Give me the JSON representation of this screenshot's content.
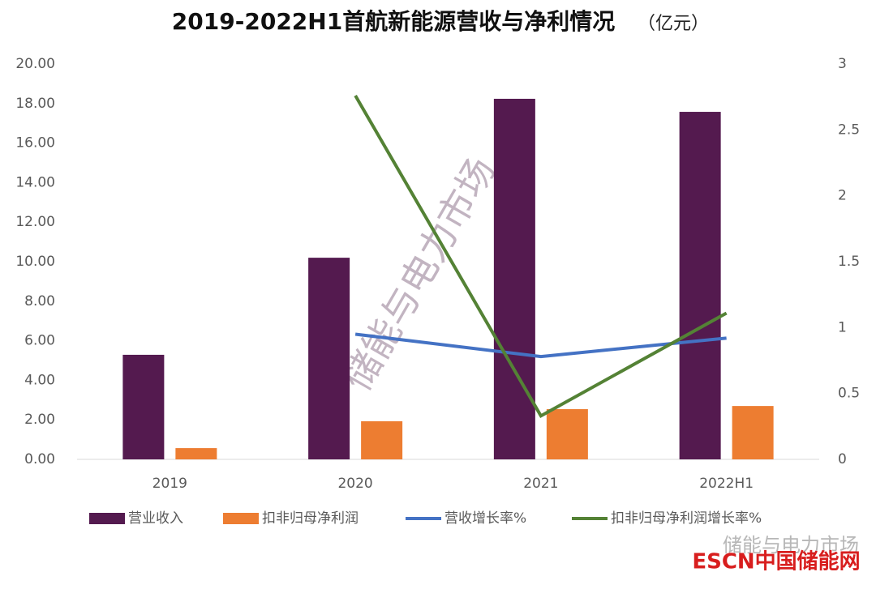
{
  "chart_data": {
    "type": "bar",
    "title": "2019-2022H1首航新能源营收与净利情况",
    "subtitle": "（亿元）",
    "categories": [
      "2019",
      "2020",
      "2021",
      "2022H1"
    ],
    "series": [
      {
        "name": "营业收入",
        "type": "bar",
        "color": "#541a4f",
        "values": [
          5.29,
          10.2,
          18.24,
          17.58
        ]
      },
      {
        "name": "扣非归母净利润",
        "type": "bar",
        "color": "#ed7d31",
        "values": [
          0.57,
          1.93,
          2.54,
          2.7
        ]
      },
      {
        "name": "营收增长率%",
        "type": "line",
        "axis": "y2",
        "color": "#4472c4",
        "values": [
          null,
          0.95,
          0.78,
          0.92
        ]
      },
      {
        "name": "扣非归母净利润增长率%",
        "type": "line",
        "axis": "y2",
        "color": "#548235",
        "values": [
          null,
          2.76,
          0.33,
          1.11
        ]
      }
    ],
    "ylim": [
      0,
      20
    ],
    "yticks": [
      {
        "value": 0,
        "label": "0.00"
      },
      {
        "value": 2,
        "label": "2.00"
      },
      {
        "value": 4,
        "label": "4.00"
      },
      {
        "value": 6,
        "label": "6.00"
      },
      {
        "value": 8,
        "label": "8.00"
      },
      {
        "value": 10,
        "label": "10.00"
      },
      {
        "value": 12,
        "label": "12.00"
      },
      {
        "value": 14,
        "label": "14.00"
      },
      {
        "value": 16,
        "label": "16.00"
      },
      {
        "value": 18,
        "label": "18.00"
      },
      {
        "value": 20,
        "label": "20.00"
      }
    ],
    "y2lim": [
      0,
      3
    ],
    "y2ticks": [
      0,
      0.5,
      1,
      1.5,
      2,
      2.5,
      3
    ],
    "grid": false,
    "legend": "bottom",
    "watermarks": [
      "储能与电力市场",
      "ESCN中国储能网"
    ]
  }
}
